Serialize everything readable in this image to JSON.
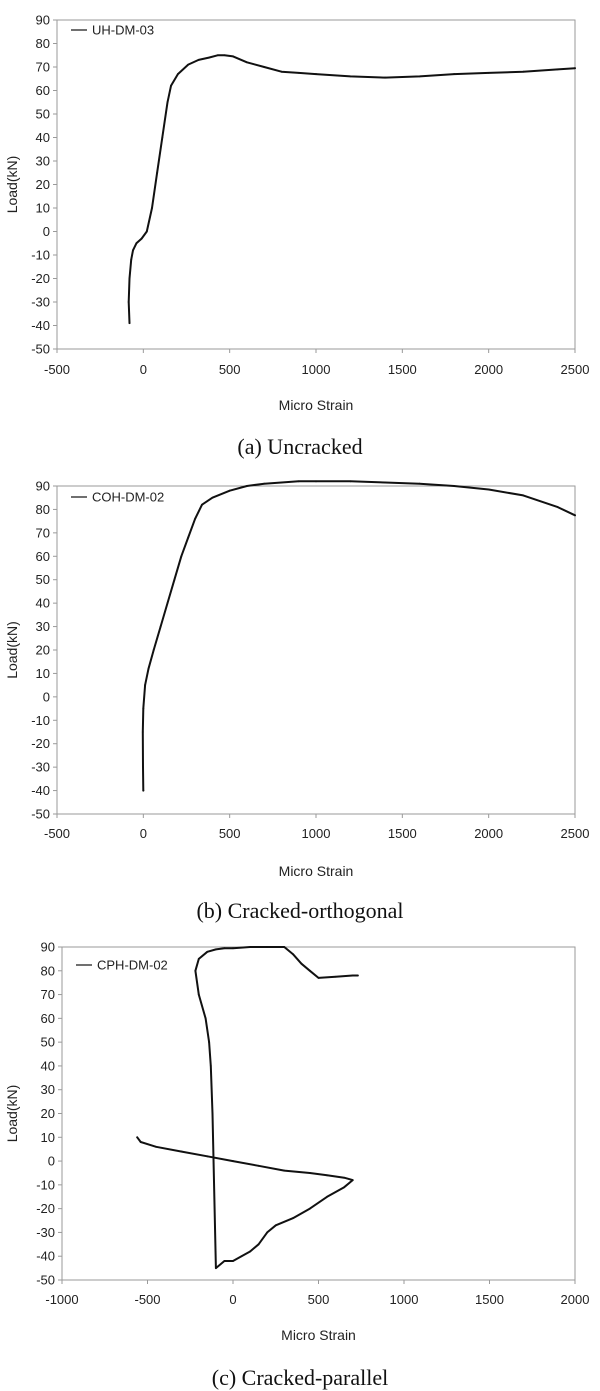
{
  "chart_data": [
    {
      "type": "line",
      "xlabel": "Micro Strain",
      "ylabel": "Load(kN)",
      "xlim": [
        -500,
        2500
      ],
      "ylim": [
        -50,
        90
      ],
      "xticks": [
        -500,
        0,
        500,
        1000,
        1500,
        2000,
        2500
      ],
      "yticks": [
        -50,
        -40,
        -30,
        -20,
        -10,
        0,
        10,
        20,
        30,
        40,
        50,
        60,
        70,
        80,
        90
      ],
      "grid": false,
      "legend_position": "top-left",
      "caption": "(a)  Uncracked",
      "series": [
        {
          "name": "UH-DM-03",
          "x": [
            -80,
            -85,
            -80,
            -70,
            -60,
            -40,
            -10,
            20,
            50,
            80,
            110,
            140,
            160,
            200,
            260,
            320,
            380,
            430,
            470,
            520,
            600,
            700,
            800,
            900,
            1000,
            1200,
            1400,
            1600,
            1800,
            2000,
            2200,
            2400,
            2500
          ],
          "y": [
            -39,
            -30,
            -20,
            -12,
            -8,
            -5,
            -3,
            0,
            10,
            25,
            40,
            55,
            62,
            67,
            71,
            73,
            74,
            75,
            75,
            74.5,
            72,
            70,
            68,
            67.5,
            67,
            66,
            65.5,
            66,
            67,
            67.5,
            68,
            69,
            69.5
          ]
        }
      ]
    },
    {
      "type": "line",
      "xlabel": "Micro Strain",
      "ylabel": "Load(kN)",
      "xlim": [
        -500,
        2500
      ],
      "ylim": [
        -50,
        90
      ],
      "xticks": [
        -500,
        0,
        500,
        1000,
        1500,
        2000,
        2500
      ],
      "yticks": [
        -50,
        -40,
        -30,
        -20,
        -10,
        0,
        10,
        20,
        30,
        40,
        50,
        60,
        70,
        80,
        90
      ],
      "grid": false,
      "legend_position": "top-left",
      "caption": "(b)  Cracked-orthogonal",
      "series": [
        {
          "name": "COH-DM-02",
          "x": [
            0,
            -2,
            -3,
            0,
            10,
            30,
            60,
            100,
            140,
            180,
            220,
            260,
            300,
            340,
            400,
            500,
            600,
            700,
            800,
            900,
            1000,
            1200,
            1400,
            1600,
            1800,
            2000,
            2200,
            2400,
            2500
          ],
          "y": [
            -40,
            -30,
            -15,
            -5,
            5,
            12,
            20,
            30,
            40,
            50,
            60,
            68,
            76,
            82,
            85,
            88,
            90,
            91,
            91.5,
            92,
            92,
            92,
            91.5,
            91,
            90,
            88.5,
            86,
            81,
            77.5
          ]
        }
      ]
    },
    {
      "type": "line",
      "xlabel": "Micro Strain",
      "ylabel": "Load(kN)",
      "xlim": [
        -1000,
        2000
      ],
      "ylim": [
        -50,
        90
      ],
      "xticks": [
        -1000,
        -500,
        0,
        500,
        1000,
        1500,
        2000
      ],
      "yticks": [
        -50,
        -40,
        -30,
        -20,
        -10,
        0,
        10,
        20,
        30,
        40,
        50,
        60,
        70,
        80,
        90
      ],
      "grid": false,
      "legend_position": "top-left",
      "caption": "(c)  Cracked-parallel",
      "series": [
        {
          "name": "CPH-DM-02",
          "x": [
            -560,
            -540,
            -450,
            -300,
            -150,
            0,
            150,
            300,
            450,
            550,
            650,
            700,
            650,
            550,
            450,
            350,
            250,
            200,
            150,
            100,
            50,
            0,
            -50,
            -100,
            -120,
            -130,
            -140,
            -160,
            -200,
            -220,
            -200,
            -150,
            -100,
            -50,
            0,
            100,
            200,
            300,
            350,
            400,
            450,
            500,
            600,
            700,
            730
          ],
          "y": [
            10,
            8,
            6,
            4,
            2,
            0,
            -2,
            -4,
            -5,
            -6,
            -7,
            -8,
            -11,
            -15,
            -20,
            -24,
            -27,
            -30,
            -35,
            -38,
            -40,
            -42,
            -42,
            -45,
            20,
            40,
            50,
            60,
            70,
            80,
            85,
            88,
            89,
            89.5,
            89.5,
            90,
            90,
            90,
            87,
            83,
            80,
            77,
            77.5,
            78,
            78
          ]
        }
      ]
    }
  ]
}
